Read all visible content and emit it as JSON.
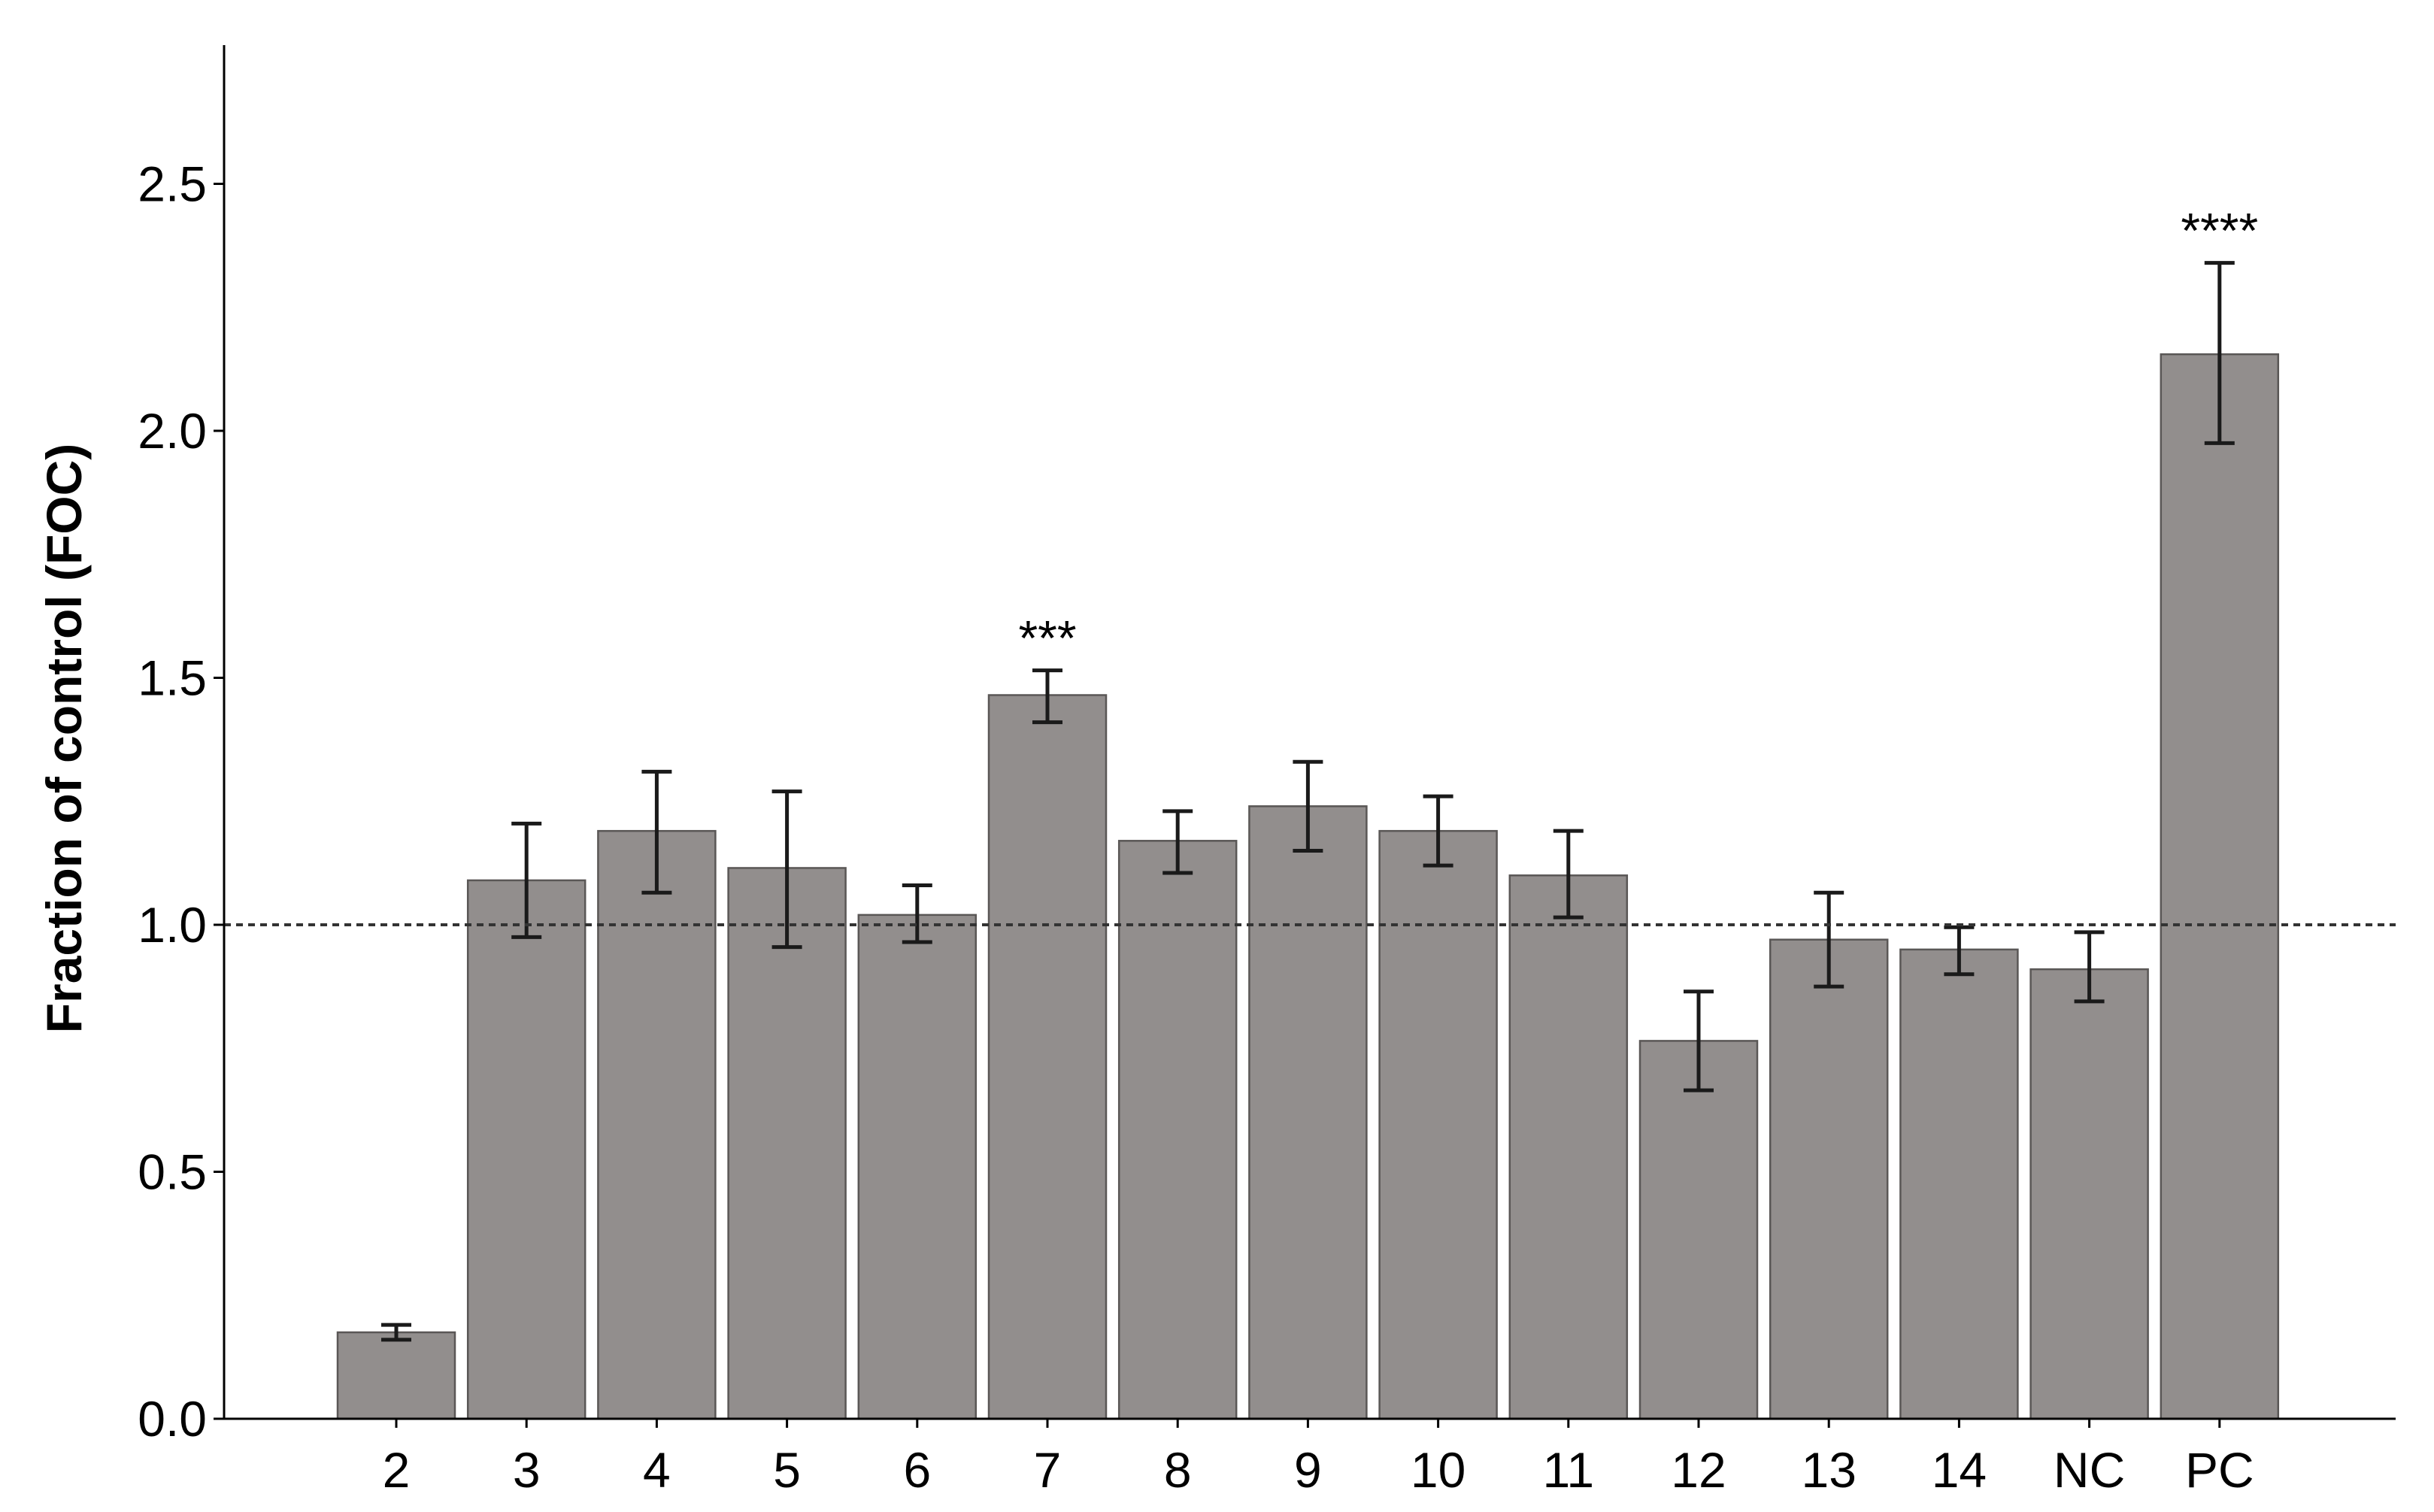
{
  "chart_data": {
    "type": "bar",
    "title": "",
    "xlabel": "",
    "ylabel": "Fraction of control (FOC)",
    "ylim": [
      0,
      2.78
    ],
    "yticks": [
      0.0,
      0.5,
      1.0,
      1.5,
      2.0,
      2.5
    ],
    "ytick_labels": [
      "0.0",
      "0.5",
      "1.0",
      "1.5",
      "2.0",
      "2.5"
    ],
    "categories": [
      "2",
      "3",
      "4",
      "5",
      "6",
      "7",
      "8",
      "9",
      "10",
      "11",
      "12",
      "13",
      "14",
      "NC",
      "PC"
    ],
    "values": [
      0.175,
      1.09,
      1.19,
      1.115,
      1.02,
      1.465,
      1.17,
      1.24,
      1.19,
      1.1,
      0.765,
      0.97,
      0.95,
      0.91,
      2.155
    ],
    "error_low": [
      0.16,
      0.975,
      1.065,
      0.955,
      0.965,
      1.41,
      1.105,
      1.15,
      1.12,
      1.015,
      0.665,
      0.875,
      0.9,
      0.845,
      1.975
    ],
    "error_high": [
      0.19,
      1.205,
      1.31,
      1.27,
      1.08,
      1.515,
      1.23,
      1.33,
      1.26,
      1.19,
      0.865,
      1.065,
      0.995,
      0.985,
      2.34
    ],
    "significance": [
      "",
      "",
      "",
      "",
      "",
      "***",
      "",
      "",
      "",
      "",
      "",
      "",
      "",
      "",
      "****"
    ],
    "reference_line": 1.0,
    "grid": false,
    "legend": "none",
    "colors": {
      "bar_fill": "#928e8d",
      "bar_stroke": "#5a5756",
      "error_bar": "#1a1a1a",
      "axis": "#000000",
      "reference_line": "#333333"
    }
  }
}
